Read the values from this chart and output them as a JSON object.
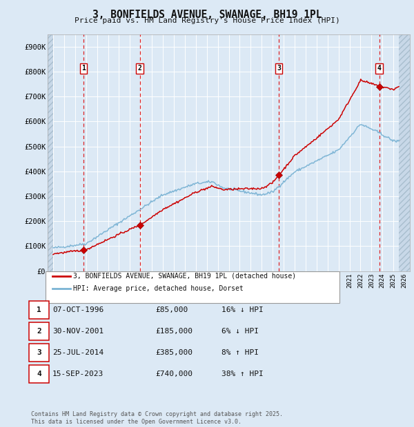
{
  "title": "3, BONFIELDS AVENUE, SWANAGE, BH19 1PL",
  "subtitle": "Price paid vs. HM Land Registry's House Price Index (HPI)",
  "bg_color": "#dce9f5",
  "red_line_color": "#cc0000",
  "blue_line_color": "#7ab3d4",
  "sale_dates": [
    1996.77,
    2001.91,
    2014.56,
    2023.71
  ],
  "sale_prices": [
    85000,
    185000,
    385000,
    740000
  ],
  "sale_labels": [
    "1",
    "2",
    "3",
    "4"
  ],
  "transactions": [
    {
      "label": "1",
      "date": "07-OCT-1996",
      "price": "£85,000",
      "hpi_note": "16% ↓ HPI"
    },
    {
      "label": "2",
      "date": "30-NOV-2001",
      "price": "£185,000",
      "hpi_note": "6% ↓ HPI"
    },
    {
      "label": "3",
      "date": "25-JUL-2014",
      "price": "£385,000",
      "hpi_note": "8% ↑ HPI"
    },
    {
      "label": "4",
      "date": "15-SEP-2023",
      "price": "£740,000",
      "hpi_note": "38% ↑ HPI"
    }
  ],
  "legend_entries": [
    {
      "label": "3, BONFIELDS AVENUE, SWANAGE, BH19 1PL (detached house)",
      "color": "#cc0000"
    },
    {
      "label": "HPI: Average price, detached house, Dorset",
      "color": "#7ab3d4"
    }
  ],
  "footer": "Contains HM Land Registry data © Crown copyright and database right 2025.\nThis data is licensed under the Open Government Licence v3.0.",
  "ylim": [
    0,
    950000
  ],
  "yticks": [
    0,
    100000,
    200000,
    300000,
    400000,
    500000,
    600000,
    700000,
    800000,
    900000
  ],
  "ytick_labels": [
    "£0",
    "£100K",
    "£200K",
    "£300K",
    "£400K",
    "£500K",
    "£600K",
    "£700K",
    "£800K",
    "£900K"
  ],
  "xmin": 1993.5,
  "xmax": 2026.5,
  "data_xstart": 1994.0,
  "data_xend": 2025.5
}
